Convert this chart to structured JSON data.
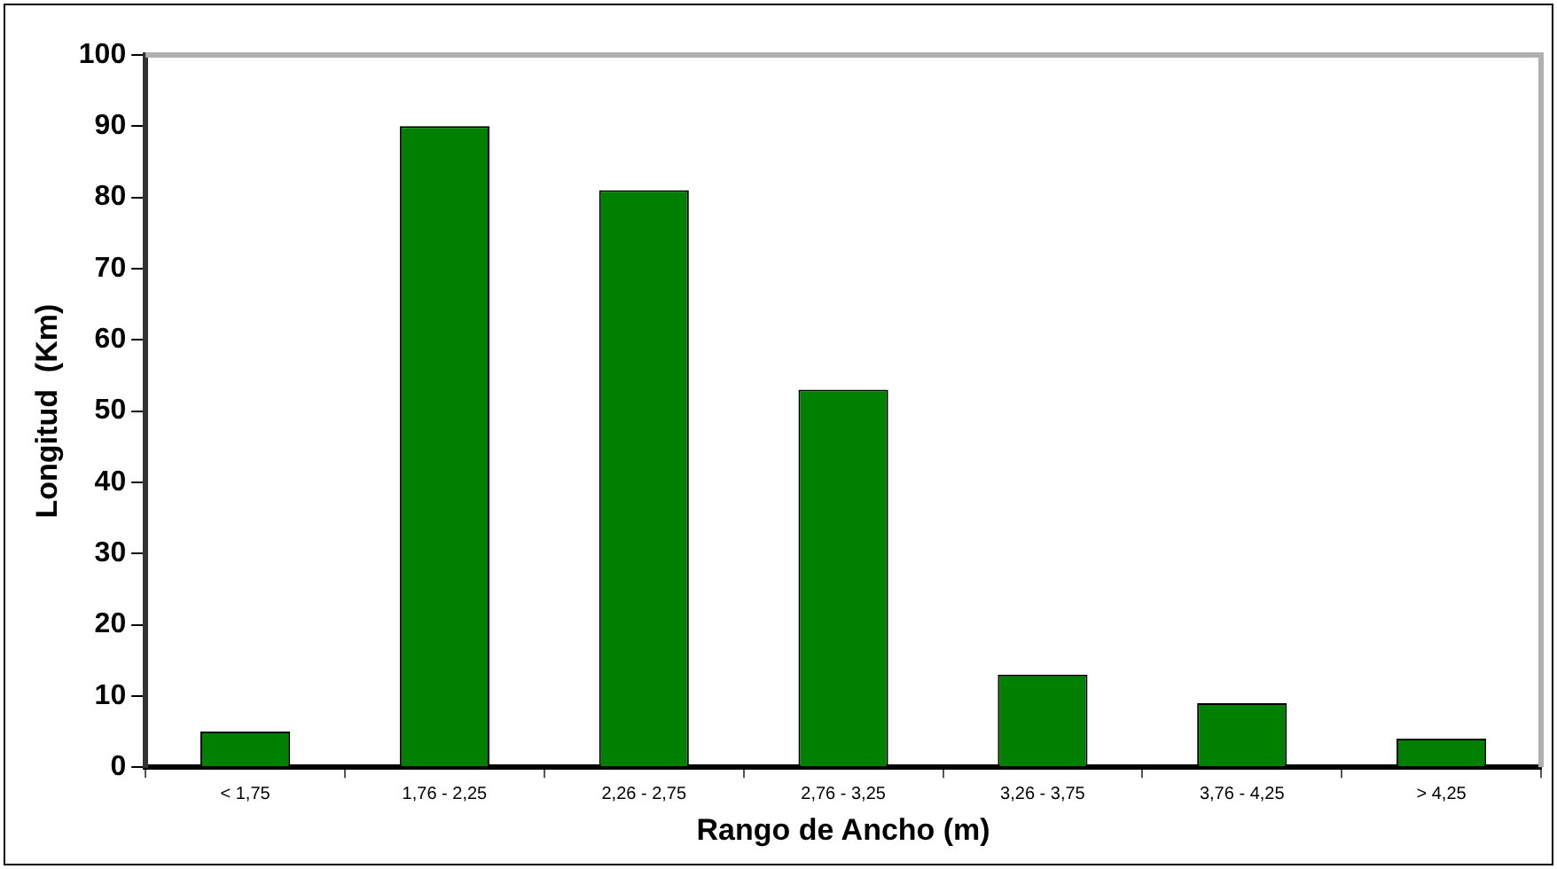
{
  "chart_data": {
    "type": "bar",
    "xlabel": "Rango de Ancho (m)",
    "ylabel": "Longitud  (Km)",
    "categories": [
      "< 1,75",
      "1,76 - 2,25",
      "2,26 - 2,75",
      "2,76 - 3,25",
      "3,26 - 3,75",
      "3,76 - 4,25",
      "> 4,25"
    ],
    "values": [
      5,
      90,
      81,
      53,
      13,
      9,
      4
    ],
    "color": "#008000",
    "ylim": [
      0,
      100
    ],
    "yticks": [
      0,
      10,
      20,
      30,
      40,
      50,
      60,
      70,
      80,
      90,
      100
    ],
    "grid": false,
    "legend": false
  }
}
